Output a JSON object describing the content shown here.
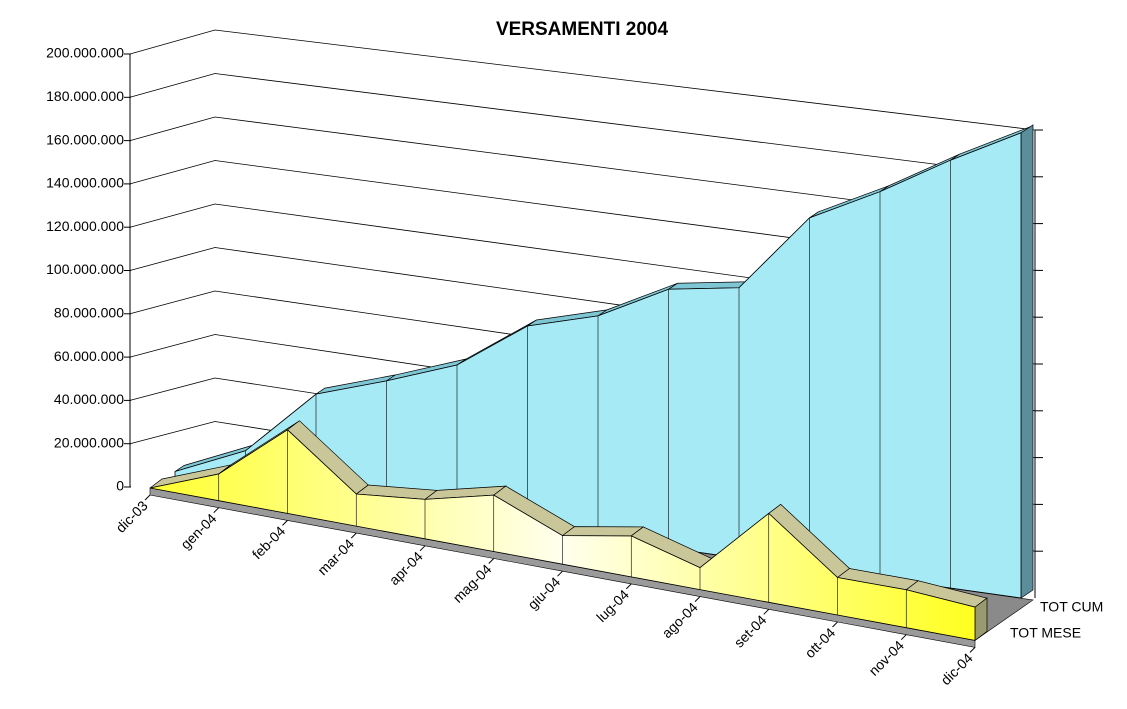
{
  "chart_data": {
    "type": "area3d",
    "title": "VERSAMENTI 2004",
    "categories": [
      "dic-03",
      "gen-04",
      "feb-04",
      "mar-04",
      "apr-04",
      "mag-04",
      "giu-04",
      "lug-04",
      "ago-04",
      "set-04",
      "ott-04",
      "nov-04",
      "dic-04"
    ],
    "series": [
      {
        "name": "TOT MESE",
        "color": "#ffff40",
        "values": [
          0,
          12000000,
          37000000,
          14000000,
          17000000,
          24000000,
          12000000,
          17000000,
          9000000,
          36000000,
          15000000,
          15000000,
          13000000
        ]
      },
      {
        "name": "TOT CUM",
        "color": "#a6eaf6",
        "values": [
          3000000,
          17000000,
          47000000,
          57000000,
          68000000,
          89000000,
          97000000,
          112000000,
          116000000,
          149000000,
          163000000,
          179000000,
          193000000
        ]
      }
    ],
    "ylim": [
      0,
      200000000
    ],
    "yticks": [
      0,
      {
        "value": 20000000,
        "label": "20.000.000"
      },
      {
        "value": 40000000,
        "label": "40.000.000"
      },
      {
        "value": 60000000,
        "label": "60.000.000"
      },
      {
        "value": 80000000,
        "label": "80.000.000"
      },
      {
        "value": 100000000,
        "label": "100.000.000"
      },
      {
        "value": 120000000,
        "label": "120.000.000"
      },
      {
        "value": 140000000,
        "label": "140.000.000"
      },
      {
        "value": 160000000,
        "label": "160.000.000"
      },
      {
        "value": 180000000,
        "label": "180.000.000"
      },
      {
        "value": 200000000,
        "label": "200.000.000"
      }
    ],
    "grid": true
  }
}
